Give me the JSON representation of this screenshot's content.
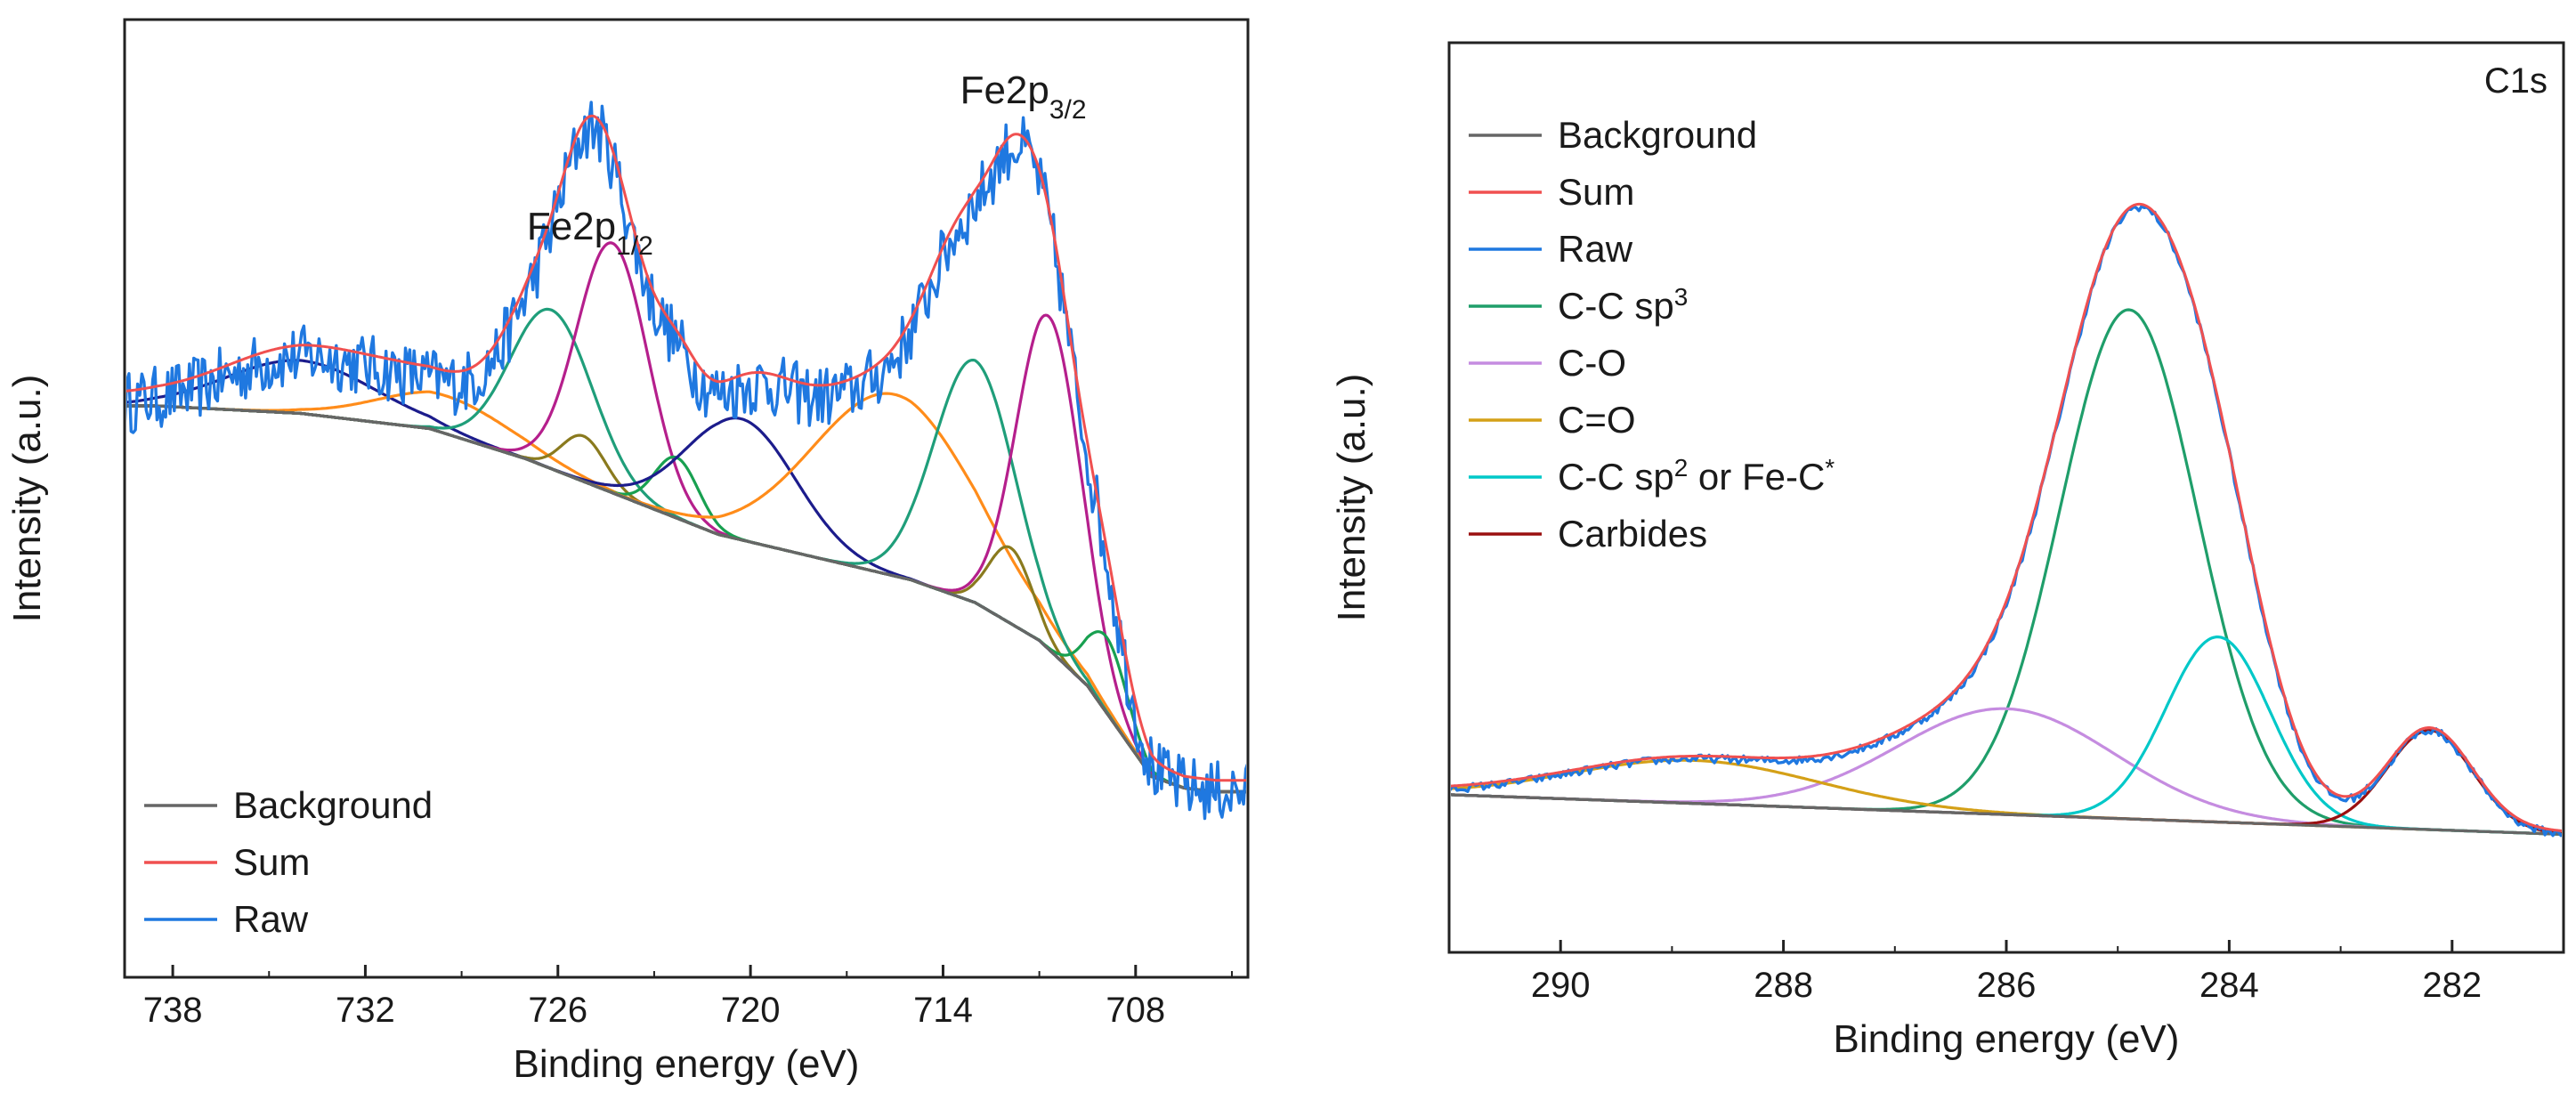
{
  "chart_data": [
    {
      "type": "line",
      "panel": "left",
      "title": "",
      "xlabel": "Binding energy (eV)",
      "ylabel": "Intensity (a.u.)",
      "xlim": [
        739.5,
        704.5
      ],
      "ylim": [
        0,
        100
      ],
      "x_axis_reversed": true,
      "xticks": [
        738,
        732,
        726,
        720,
        714,
        708
      ],
      "grid": false,
      "legend_position": "bottom-left",
      "annotations": [
        {
          "base": "Fe2p",
          "sub": "1/2",
          "x": 725,
          "y": 86
        },
        {
          "base": "Fe2p",
          "sub": "3/2",
          "x": 711.5,
          "y": 104
        }
      ],
      "background": {
        "name": "Background",
        "color": "#666666",
        "x": [
          738.5,
          734,
          730,
          727,
          724,
          721,
          718,
          715,
          713,
          711,
          709.5,
          708.5,
          707.5,
          706.5,
          705.5
        ],
        "y": [
          64,
          63,
          61,
          57,
          52,
          47,
          44,
          41,
          38,
          33,
          27,
          21,
          15,
          13.5,
          13
        ]
      },
      "series": [
        {
          "name": "Background",
          "in_legend": true,
          "legend_order": 0,
          "color": "#666666",
          "kind": "line",
          "x": [
            738.5,
            734,
            730,
            727,
            724,
            721,
            718,
            715,
            713,
            711,
            709.5,
            708.5,
            707.5,
            706.5,
            705.5
          ],
          "y": [
            64,
            63,
            61,
            57,
            52,
            47,
            44,
            41,
            38,
            33,
            27,
            21,
            15,
            13.5,
            13
          ]
        },
        {
          "name": "Sum",
          "in_legend": true,
          "legend_order": 1,
          "color": "#f05050",
          "kind": "sum"
        },
        {
          "name": "Raw",
          "in_legend": true,
          "legend_order": 2,
          "color": "#1f78e0",
          "kind": "raw"
        },
        {
          "name": "Satellite 734",
          "in_legend": false,
          "color": "#1c1c8c",
          "kind": "peak",
          "center": 734,
          "height": 7,
          "fwhm": 5.5
        },
        {
          "name": "Satellite 729",
          "in_legend": false,
          "color": "#ff8c1a",
          "kind": "peak",
          "center": 729.5,
          "height": 5,
          "fwhm": 5.0
        },
        {
          "name": "Peak 726",
          "in_legend": false,
          "color": "#1f9e7a",
          "kind": "peak",
          "center": 726.2,
          "height": 21,
          "fwhm": 3.0
        },
        {
          "name": "Peak 725.2",
          "in_legend": false,
          "color": "#8a7a1e",
          "kind": "peak",
          "center": 725.2,
          "height": 6,
          "fwhm": 1.6
        },
        {
          "name": "Peak 724.3",
          "in_legend": false,
          "color": "#b51f8c",
          "kind": "peak",
          "center": 724.3,
          "height": 33,
          "fwhm": 2.6
        },
        {
          "name": "Peak 722.3",
          "in_legend": false,
          "color": "#18a050",
          "kind": "peak",
          "center": 722.3,
          "height": 8,
          "fwhm": 1.6
        },
        {
          "name": "Peak 720.3",
          "in_legend": false,
          "color": "#1c1c8c",
          "kind": "peak",
          "center": 720.3,
          "height": 16,
          "fwhm": 4.0
        },
        {
          "name": "Satellite 715.5",
          "in_legend": false,
          "color": "#ff8c1a",
          "kind": "peak",
          "center": 715.5,
          "height": 24,
          "fwhm": 6.0
        },
        {
          "name": "Peak 713",
          "in_legend": false,
          "color": "#1f9e7a",
          "kind": "peak",
          "center": 713.0,
          "height": 32,
          "fwhm": 3.0
        },
        {
          "name": "Peak 711.9",
          "in_legend": false,
          "color": "#8a7a1e",
          "kind": "peak",
          "center": 711.9,
          "height": 10,
          "fwhm": 1.6
        },
        {
          "name": "Peak 710.7",
          "in_legend": false,
          "color": "#b51f8c",
          "kind": "peak",
          "center": 710.7,
          "height": 44,
          "fwhm": 2.4
        },
        {
          "name": "Peak 708.9",
          "in_legend": false,
          "color": "#18a050",
          "kind": "peak",
          "center": 708.9,
          "height": 10,
          "fwhm": 1.5
        }
      ]
    },
    {
      "type": "line",
      "panel": "right",
      "title": "C1s",
      "xlabel": "Binding energy (eV)",
      "ylabel": "Intensity (a.u.)",
      "xlim": [
        291.0,
        281.0
      ],
      "ylim": [
        -5,
        100
      ],
      "x_axis_reversed": true,
      "xticks": [
        290,
        288,
        286,
        284,
        282
      ],
      "grid": false,
      "legend_position": "top-left",
      "background": {
        "name": "Background",
        "color": "#666666",
        "x": [
          291,
          281
        ],
        "y": [
          0,
          -6
        ]
      },
      "series": [
        {
          "name": "Background",
          "in_legend": true,
          "color": "#666666",
          "kind": "line",
          "x": [
            291,
            281
          ],
          "y": [
            0,
            -6
          ]
        },
        {
          "name": "Sum",
          "in_legend": true,
          "color": "#f05050",
          "kind": "sum"
        },
        {
          "name": "Raw",
          "in_legend": true,
          "color": "#1f78e0",
          "kind": "raw"
        },
        {
          "name": "C-C sp",
          "sup": "3",
          "after": "",
          "in_legend": true,
          "color": "#1f9e6a",
          "kind": "peak",
          "center": 284.9,
          "height": 77,
          "fwhm": 1.45
        },
        {
          "name": "C-O",
          "in_legend": true,
          "color": "#c58ce0",
          "kind": "peak",
          "center": 286.0,
          "height": 16,
          "fwhm": 2.3
        },
        {
          "name": "C=O",
          "in_legend": true,
          "color": "#d4a017",
          "kind": "peak",
          "center": 288.8,
          "height": 6.5,
          "fwhm": 2.6
        },
        {
          "name": "C-C sp",
          "sup": "2",
          "after": " or Fe-C",
          "star": "*",
          "in_legend": true,
          "color": "#00c8c8",
          "kind": "peak",
          "center": 284.1,
          "height": 28,
          "fwhm": 1.1
        },
        {
          "name": "Carbides",
          "in_legend": true,
          "color": "#9a1010",
          "kind": "peak",
          "center": 282.2,
          "height": 15,
          "fwhm": 0.9
        }
      ]
    }
  ]
}
